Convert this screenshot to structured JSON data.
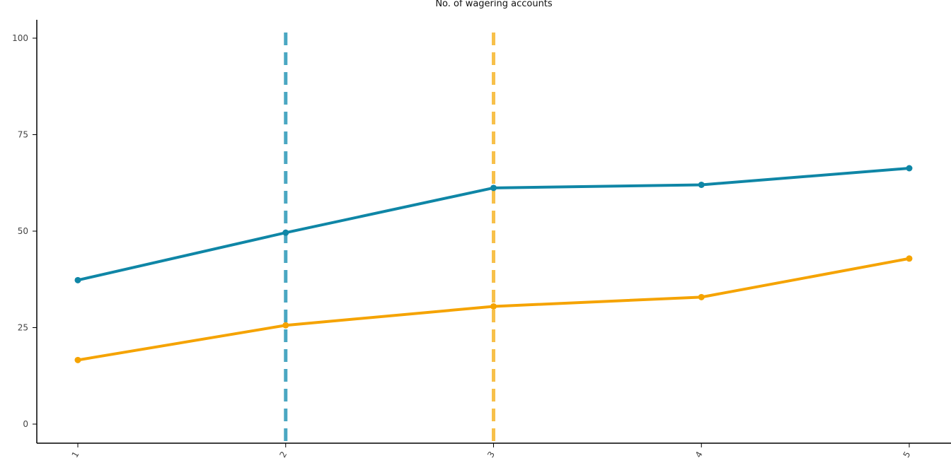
{
  "chart_data": {
    "type": "line",
    "title": "No. of wagering accounts",
    "xlabel": "",
    "ylabel": "",
    "x": [
      "1",
      "2",
      "3",
      "4",
      "5"
    ],
    "xlim": [
      1,
      5
    ],
    "ylim": [
      0,
      100
    ],
    "yticks": [
      "0",
      "25",
      "50",
      "75",
      "100"
    ],
    "grid": false,
    "legend": "none",
    "series": [
      {
        "color": "#0f86a6",
        "values": [
          37.3,
          49.6,
          61.2,
          62.0,
          66.3
        ]
      },
      {
        "color": "#f5a300",
        "values": [
          16.6,
          25.6,
          30.5,
          32.9,
          42.9
        ]
      }
    ],
    "reference_lines": [
      {
        "x": 2,
        "color": "#4aa7c2"
      },
      {
        "x": 3,
        "color": "#f7c04a"
      }
    ]
  }
}
